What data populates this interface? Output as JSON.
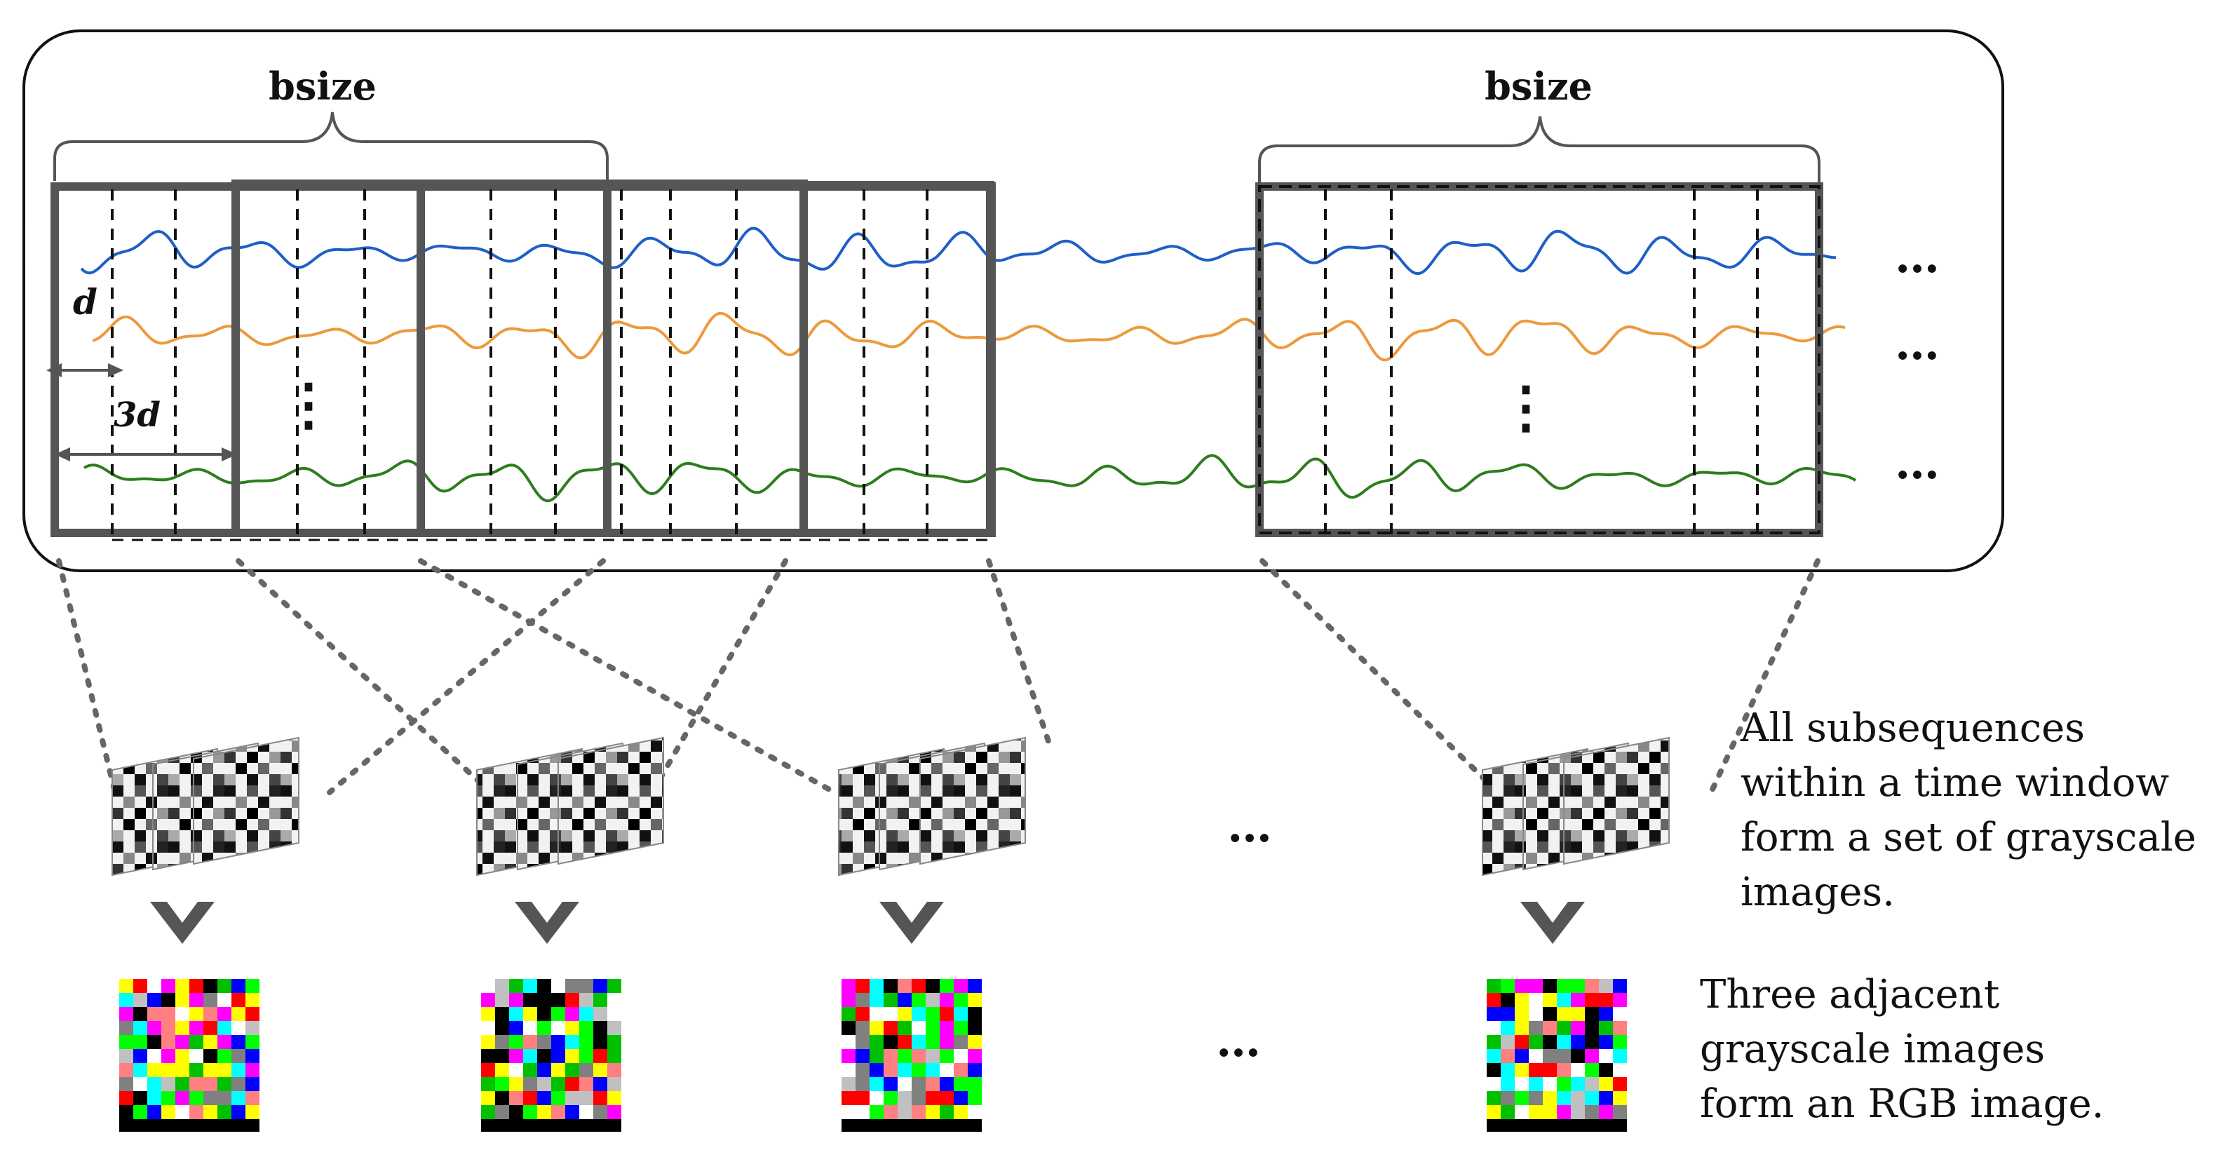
{
  "labels": {
    "bsize_left": "bsize",
    "bsize_right": "bsize",
    "d": "d",
    "three_d": "3d",
    "ellipsis": "…",
    "vdots": "⋮"
  },
  "captions": {
    "grayscale": "All subsequences\nwithin a time window\nform a set of grayscale\nimages.",
    "rgb": "Three adjacent\ngrayscale images\nform an RGB image."
  },
  "series": [
    {
      "name_icon": "blue-signal",
      "color": "#1f5fc8"
    },
    {
      "name_icon": "orange-signal",
      "color": "#ec9a3c"
    },
    {
      "name_icon": "green-signal",
      "color": "#2e7d1e"
    }
  ],
  "colors": {
    "frame": "#111111",
    "window_border": "#555555",
    "connector": "#666666",
    "arrow": "#555555"
  }
}
